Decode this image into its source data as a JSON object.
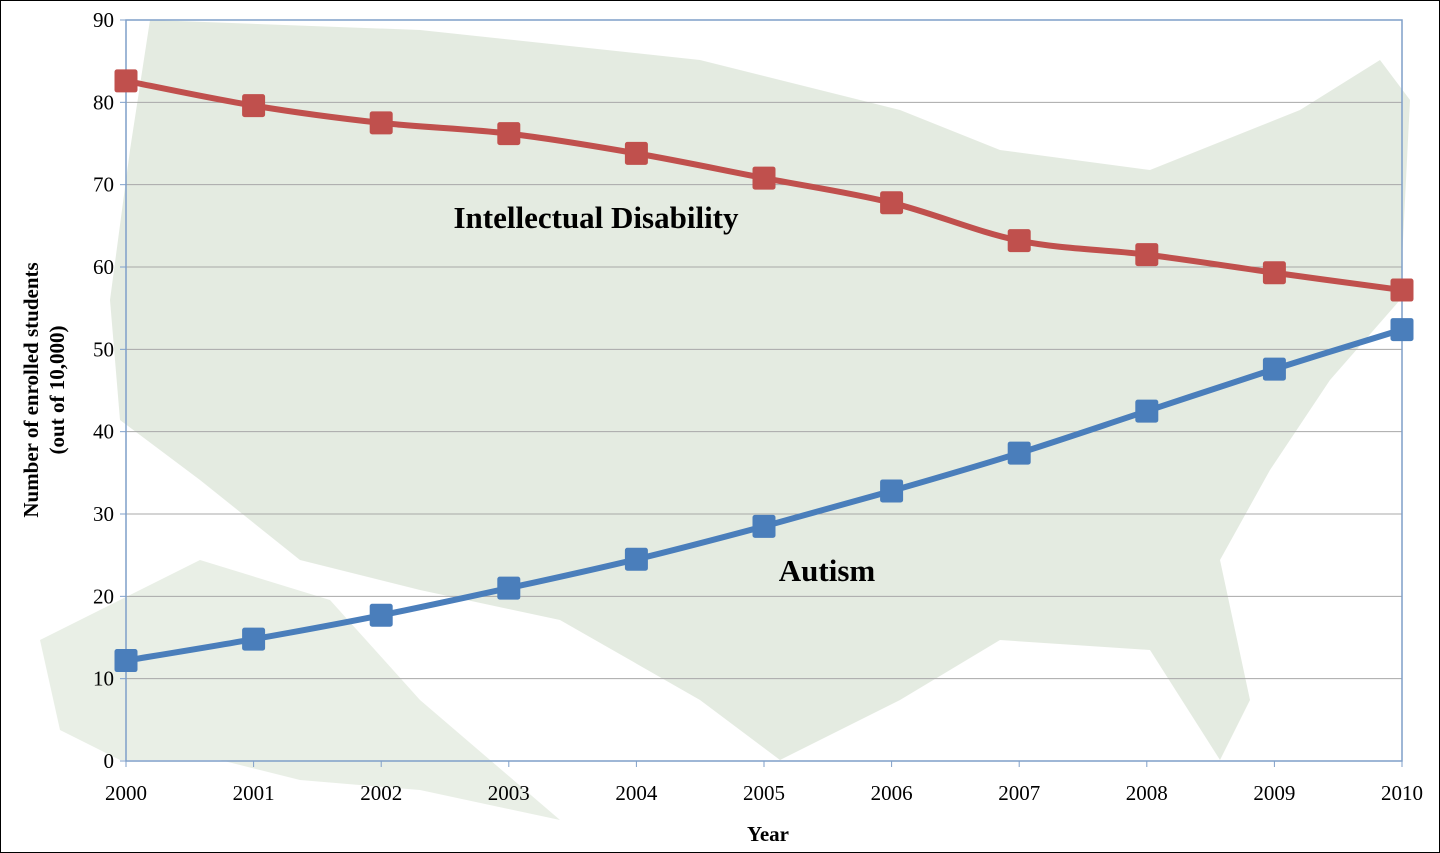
{
  "chart_data": {
    "type": "line",
    "title": "",
    "xlabel": "Year",
    "ylabel": "Number of enrolled students",
    "ylabel_sub": "(out of 10,000)",
    "x": [
      2000,
      2001,
      2002,
      2003,
      2004,
      2005,
      2006,
      2007,
      2008,
      2009,
      2010
    ],
    "xlim": [
      2000,
      2010
    ],
    "ylim": [
      0,
      90
    ],
    "yticks": [
      0,
      10,
      20,
      30,
      40,
      50,
      60,
      70,
      80,
      90
    ],
    "grid": true,
    "legend": "none",
    "background": "faded US map",
    "series": [
      {
        "name": "Intellectual Disability",
        "color": "#c0504d",
        "values": [
          82.6,
          79.6,
          77.5,
          76.2,
          73.8,
          70.8,
          67.8,
          63.2,
          61.5,
          59.3,
          57.2
        ]
      },
      {
        "name": "Autism",
        "color": "#4a7ebb",
        "values": [
          12.2,
          14.8,
          17.7,
          21.0,
          24.5,
          28.5,
          32.8,
          37.4,
          42.5,
          47.6,
          52.4
        ]
      }
    ]
  }
}
